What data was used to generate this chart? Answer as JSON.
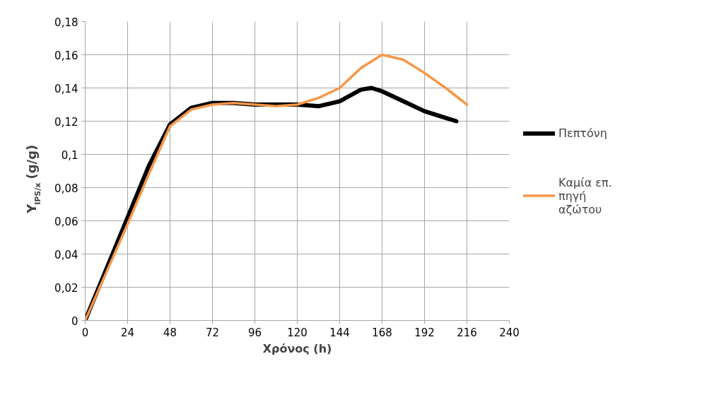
{
  "chart_data": {
    "type": "line",
    "xlabel": "Χρόνος (h)",
    "ylabel": "Y$_{IPS/x}$ (g/g)",
    "xlim": [
      0,
      240
    ],
    "xticks": [
      0,
      24,
      48,
      72,
      96,
      120,
      144,
      168,
      192,
      216,
      240
    ],
    "ylim": [
      0,
      0.18
    ],
    "yticks": [
      {
        "value": 0,
        "label": "0"
      },
      {
        "value": 0.02,
        "label": "0,02"
      },
      {
        "value": 0.04,
        "label": "0,04"
      },
      {
        "value": 0.06,
        "label": "0,06"
      },
      {
        "value": 0.08,
        "label": "0,08"
      },
      {
        "value": 0.1,
        "label": "0,1"
      },
      {
        "value": 0.12,
        "label": "0,12"
      },
      {
        "value": 0.14,
        "label": "0,14"
      },
      {
        "value": 0.16,
        "label": "0,16"
      },
      {
        "value": 0.18,
        "label": "0,18"
      }
    ],
    "grid": true,
    "legend": "right",
    "marker": "none",
    "line_style": "solid",
    "series": [
      {
        "name": "Πεπτόνη",
        "color": "#000000",
        "x": [
          0,
          12,
          24,
          36,
          48,
          60,
          72,
          84,
          96,
          108,
          120,
          132,
          144,
          156,
          162,
          168,
          180,
          192,
          204,
          210
        ],
        "values": [
          0,
          0.031,
          0.062,
          0.093,
          0.118,
          0.128,
          0.131,
          0.131,
          0.13,
          0.13,
          0.13,
          0.129,
          0.132,
          0.139,
          0.14,
          0.138,
          0.132,
          0.126,
          0.122,
          0.12
        ]
      },
      {
        "name": "Καμία επ. πηγή αζώτου",
        "color": "#f79646",
        "x": [
          0,
          12,
          24,
          36,
          48,
          60,
          72,
          84,
          96,
          108,
          120,
          132,
          144,
          156,
          168,
          180,
          192,
          204,
          216
        ],
        "values": [
          0,
          0.029,
          0.058,
          0.088,
          0.117,
          0.127,
          0.13,
          0.131,
          0.13,
          0.129,
          0.13,
          0.134,
          0.14,
          0.152,
          0.16,
          0.157,
          0.149,
          0.14,
          0.13
        ]
      }
    ]
  }
}
